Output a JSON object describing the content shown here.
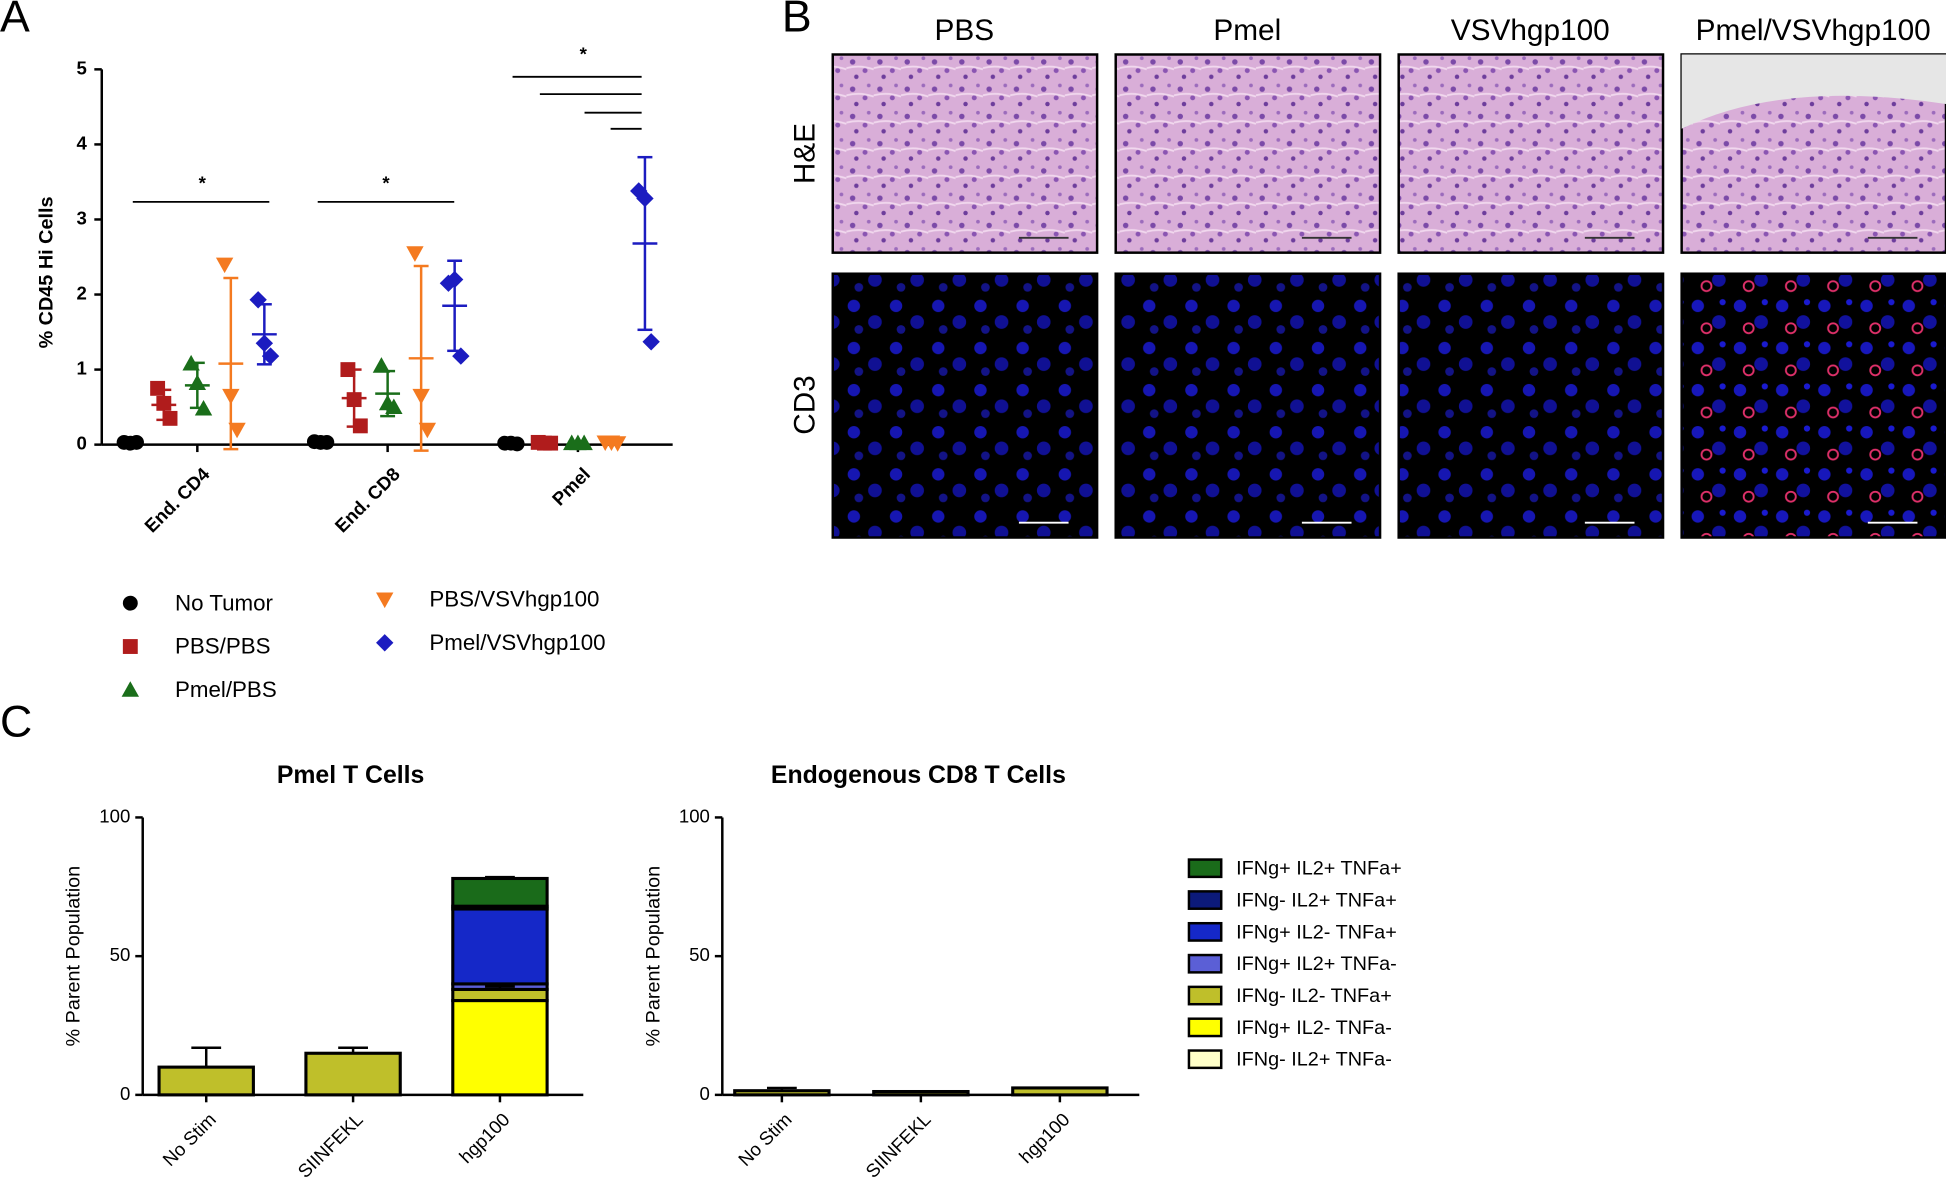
{
  "panel_labels": [
    "A",
    "B",
    "C"
  ],
  "chart_data": [
    {
      "type": "dot",
      "y_label": "% CD45 Hi Cells",
      "categories": [
        "End. CD4",
        "End. CD8",
        "Pmel"
      ],
      "ylim": [
        0,
        5
      ],
      "yticks": [
        0,
        1,
        2,
        3,
        4,
        5
      ],
      "annotations": [
        "*",
        "*",
        "*"
      ],
      "series": [
        {
          "name": "No Tumor",
          "color": "#000000",
          "marker": "circle",
          "values": [
            [
              0.03,
              0.02,
              0.03
            ],
            [
              0.04,
              0.03,
              0.03
            ],
            [
              0.02,
              0.02,
              0.01
            ]
          ]
        },
        {
          "name": "PBS/PBS",
          "color": "#b01c1c",
          "marker": "square",
          "values": [
            [
              0.75,
              0.55,
              0.35
            ],
            [
              1.0,
              0.6,
              0.25
            ],
            [
              0.03,
              0.02,
              0.02
            ]
          ],
          "mean": [
            0.53,
            0.62,
            null
          ],
          "sd": [
            0.2,
            0.38,
            null
          ]
        },
        {
          "name": "Pmel/PBS",
          "color": "#1a6e1a",
          "marker": "triangle",
          "values": [
            [
              1.08,
              0.82,
              0.48
            ],
            [
              1.05,
              0.55,
              0.5
            ],
            [
              0.02,
              0.02,
              0.02
            ]
          ],
          "mean": [
            0.79,
            0.68,
            null
          ],
          "sd": [
            0.3,
            0.3,
            null
          ]
        },
        {
          "name": "PBS/VSVhgp100",
          "color": "#f47a20",
          "marker": "triangle-down",
          "values": [
            [
              2.4,
              0.65,
              0.2
            ],
            [
              2.55,
              0.65,
              0.2
            ],
            [
              0.03,
              0.03,
              0.02
            ]
          ],
          "mean": [
            1.08,
            1.15,
            null
          ],
          "sd": [
            1.14,
            1.23,
            null
          ]
        },
        {
          "name": "Pmel/VSVhgp100",
          "color": "#1c1cc0",
          "marker": "diamond",
          "values": [
            [
              1.93,
              1.35,
              1.18
            ],
            [
              2.15,
              2.2,
              1.18
            ],
            [
              3.38,
              3.28,
              1.37
            ]
          ],
          "mean": [
            1.47,
            1.85,
            2.68
          ],
          "sd": [
            0.4,
            0.6,
            1.15
          ]
        }
      ]
    },
    {
      "type": "stacked_bar",
      "title": "Pmel T Cells",
      "y_label": "% Parent Population",
      "categories": [
        "No Stim",
        "SIINFEKL",
        "hgp100"
      ],
      "ylim": [
        0,
        100
      ],
      "yticks": [
        0,
        50,
        100
      ],
      "series": [
        {
          "color": "#1a6b1a",
          "values": [
            0,
            0,
            10
          ],
          "errors": [
            null,
            null,
            0.5
          ]
        },
        {
          "color": "#0c1a7a",
          "values": [
            0,
            0,
            1
          ]
        },
        {
          "color": "#1528c8",
          "values": [
            0,
            0,
            27
          ]
        },
        {
          "color": "#5b5fd6",
          "values": [
            0,
            0,
            2
          ]
        },
        {
          "color": "#bfbf2a",
          "values": [
            10,
            15,
            4
          ],
          "errors": [
            7,
            2,
            1
          ]
        },
        {
          "color": "#ffff00",
          "values": [
            0,
            0,
            34
          ]
        },
        {
          "color": "#ffffc8",
          "values": [
            0,
            0,
            0
          ]
        }
      ]
    },
    {
      "type": "stacked_bar",
      "title": "Endogenous CD8 T Cells",
      "y_label": "% Parent Population",
      "categories": [
        "No Stim",
        "SIINFEKL",
        "hgp100"
      ],
      "ylim": [
        0,
        100
      ],
      "yticks": [
        0,
        50,
        100
      ],
      "series": [
        {
          "name": "IFNg+ IL2+ TNFa+",
          "color": "#1a6b1a",
          "values": [
            0,
            0,
            0
          ]
        },
        {
          "name": "IFNg- IL2+ TNFa+",
          "color": "#0c1a7a",
          "values": [
            0,
            0,
            0
          ]
        },
        {
          "name": "IFNg+ IL2- TNFa+",
          "color": "#1528c8",
          "values": [
            0,
            0,
            0
          ]
        },
        {
          "name": "IFNg+ IL2+ TNFa-",
          "color": "#5b5fd6",
          "values": [
            0,
            0,
            0
          ]
        },
        {
          "name": "IFNg- IL2- TNFa+",
          "color": "#bfbf2a",
          "values": [
            1.5,
            1.2,
            2.5
          ],
          "errors": [
            1,
            null,
            null
          ]
        },
        {
          "name": "IFNg+ IL2- TNFa-",
          "color": "#ffff00",
          "values": [
            0,
            0,
            0
          ]
        },
        {
          "name": "IFNg- IL2+ TNFa-",
          "color": "#ffffc8",
          "values": [
            0,
            0,
            0
          ]
        }
      ]
    }
  ],
  "micrographs": {
    "columns": [
      "PBS",
      "Pmel",
      "VSVhgp100",
      "Pmel/VSVhgp100"
    ],
    "rows": [
      "H&E",
      "CD3"
    ]
  }
}
